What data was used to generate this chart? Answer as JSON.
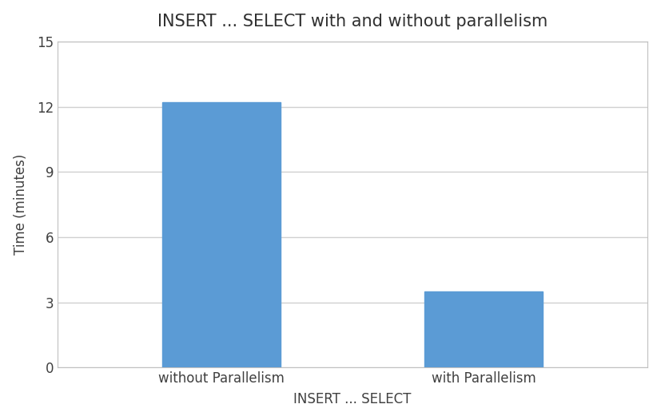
{
  "title": "INSERT ... SELECT with and without parallelism",
  "xlabel": "INSERT ... SELECT",
  "ylabel": "Time (minutes)",
  "categories": [
    "without Parallelism",
    "with Parallelism"
  ],
  "values": [
    12.2,
    3.5
  ],
  "bar_color": "#5B9BD5",
  "ylim": [
    0,
    15
  ],
  "yticks": [
    0,
    3,
    6,
    9,
    12,
    15
  ],
  "background_color": "#FFFFFF",
  "figure_background": "#FFFFFF",
  "bar_width": 0.18,
  "x_positions": [
    0.3,
    0.7
  ],
  "xlim": [
    0.05,
    0.95
  ],
  "title_fontsize": 15,
  "axis_label_fontsize": 12,
  "tick_fontsize": 12,
  "grid_color": "#D0D0D0",
  "spine_color": "#C0C0C0"
}
